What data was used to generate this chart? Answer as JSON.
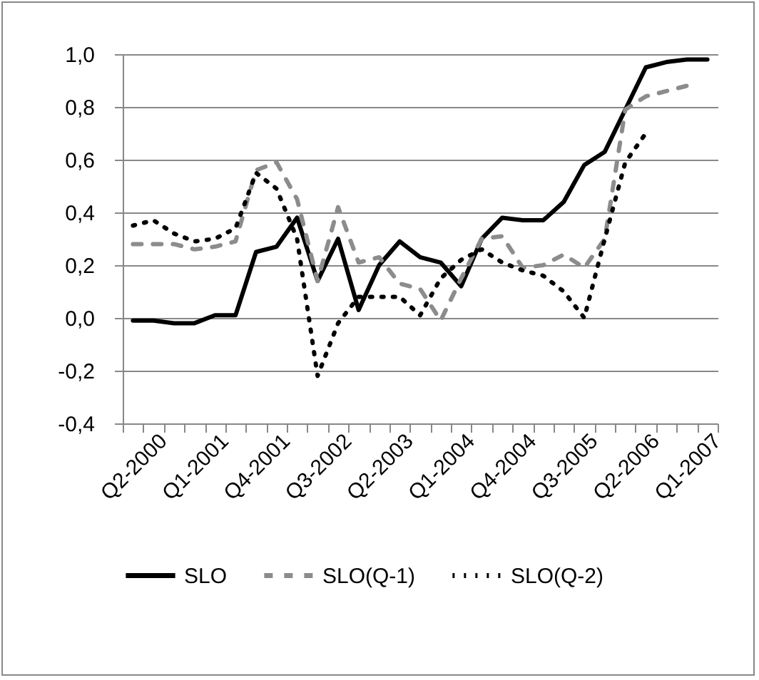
{
  "chart_data": {
    "type": "line",
    "categories": [
      "Q2-2000",
      null,
      null,
      "Q1-2001",
      null,
      null,
      "Q4-2001",
      null,
      null,
      "Q3-2002",
      null,
      null,
      "Q2-2003",
      null,
      null,
      "Q1-2004",
      null,
      null,
      "Q4-2004",
      null,
      null,
      "Q3-2005",
      null,
      null,
      "Q2-2006",
      null,
      null,
      "Q1-2007",
      null
    ],
    "series": [
      {
        "name": "SLO",
        "color": "#000000",
        "line_style": "solid",
        "values": [
          -0.01,
          -0.01,
          -0.02,
          -0.02,
          0.01,
          0.01,
          0.25,
          0.27,
          0.38,
          0.14,
          0.3,
          0.03,
          0.2,
          0.29,
          0.23,
          0.21,
          0.12,
          0.3,
          0.38,
          0.37,
          0.37,
          0.44,
          0.58,
          0.63,
          0.79,
          0.95,
          0.97,
          0.98,
          0.98
        ]
      },
      {
        "name": "SLO(Q-1)",
        "color": "#8c8c8c",
        "line_style": "dashed",
        "values": [
          0.28,
          0.28,
          0.28,
          0.26,
          0.27,
          0.29,
          0.56,
          0.59,
          0.45,
          0.14,
          0.42,
          0.21,
          0.23,
          0.13,
          0.11,
          -0.01,
          0.15,
          0.3,
          0.31,
          0.19,
          0.2,
          0.24,
          0.19,
          0.3,
          0.79,
          0.84,
          0.86,
          0.88,
          null
        ]
      },
      {
        "name": "SLO(Q-2)",
        "color": "#000000",
        "line_style": "dotted",
        "values": [
          0.35,
          0.37,
          0.32,
          0.29,
          0.3,
          0.34,
          0.55,
          0.49,
          0.3,
          -0.22,
          -0.02,
          0.08,
          0.08,
          0.08,
          0.01,
          0.15,
          0.22,
          0.26,
          0.21,
          0.18,
          0.16,
          0.1,
          0.0,
          0.3,
          0.59,
          0.7,
          null,
          null,
          null
        ]
      }
    ],
    "ylim": [
      -0.4,
      1.0
    ],
    "yticks": [
      {
        "value": -0.4,
        "label": "-0,4"
      },
      {
        "value": -0.2,
        "label": "-0,2"
      },
      {
        "value": 0,
        "label": "0,0"
      },
      {
        "value": 0.2,
        "label": "0,2"
      },
      {
        "value": 0.4,
        "label": "0,4"
      },
      {
        "value": 0.6,
        "label": "0,6"
      },
      {
        "value": 0.8,
        "label": "0,8"
      },
      {
        "value": 1.0,
        "label": "1,0"
      }
    ],
    "grid": "y",
    "legend": "bottom"
  }
}
